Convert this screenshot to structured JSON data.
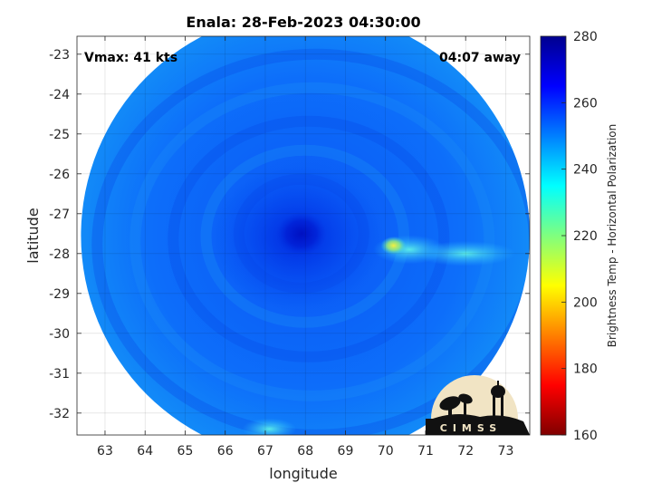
{
  "chart_data": {
    "type": "heatmap",
    "title": "Enala: 28-Feb-2023 04:30:00",
    "xlabel": "longitude",
    "ylabel": "latitude",
    "xlim": [
      62.3,
      73.6
    ],
    "ylim": [
      -32.55,
      -22.55
    ],
    "x_ticks": [
      63,
      64,
      65,
      66,
      67,
      68,
      69,
      70,
      71,
      72,
      73
    ],
    "y_ticks": [
      -23,
      -24,
      -25,
      -26,
      -27,
      -28,
      -29,
      -30,
      -31,
      -32
    ],
    "grid": true,
    "annotations": {
      "vmax": "Vmax: 41 kts",
      "time_offset": "04:07 away"
    },
    "storm_center": {
      "lon": 67.9,
      "lat": -27.5
    },
    "swath": {
      "center_lon": 68.0,
      "center_lat": -27.55,
      "radius_deg": 5.6
    },
    "colorbar": {
      "label": "Brightness Temp - Horizontal Polarization",
      "min": 160,
      "max": 280,
      "ticks": [
        280,
        260,
        240,
        220,
        200,
        180,
        160
      ],
      "colormap": "jet"
    },
    "features": [
      {
        "name": "eye",
        "lon": 67.9,
        "lat": -27.5,
        "tb": 270
      },
      {
        "name": "inner-core",
        "lon": 67.8,
        "lat": -27.6,
        "tb": 265
      },
      {
        "name": "convective-band-east",
        "lon": 70.2,
        "lat": -27.8,
        "tb": 205
      },
      {
        "name": "band-northeast",
        "lon": 70.6,
        "lat": -27.9,
        "tb": 235
      },
      {
        "name": "band-east-far",
        "lon": 72.0,
        "lat": -28.0,
        "tb": 235
      },
      {
        "name": "band-south",
        "lon": 67.1,
        "lat": -32.4,
        "tb": 230
      }
    ]
  },
  "logo": {
    "text": "CIMSS"
  }
}
